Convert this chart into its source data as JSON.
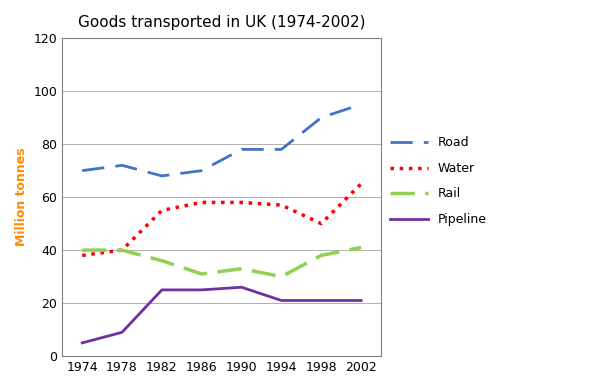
{
  "title": "Goods transported in UK (1974-2002)",
  "ylabel": "Million tonnes",
  "years": [
    1974,
    1978,
    1982,
    1986,
    1990,
    1994,
    1998,
    2002
  ],
  "road": [
    70,
    72,
    68,
    70,
    78,
    78,
    90,
    95
  ],
  "water": [
    38,
    40,
    55,
    58,
    58,
    57,
    50,
    65
  ],
  "rail": [
    40,
    40,
    36,
    31,
    33,
    30,
    38,
    41
  ],
  "pipeline": [
    5,
    9,
    25,
    25,
    26,
    21,
    21,
    21
  ],
  "road_color": "#4472C4",
  "water_color": "#FF0000",
  "rail_color": "#92D050",
  "pipeline_color": "#7030A0",
  "ylim": [
    0,
    120
  ],
  "yticks": [
    0,
    20,
    40,
    60,
    80,
    100,
    120
  ],
  "title_fontsize": 11,
  "tick_fontsize": 9,
  "legend_fontsize": 9,
  "axis_label_color": "#FF8C00"
}
